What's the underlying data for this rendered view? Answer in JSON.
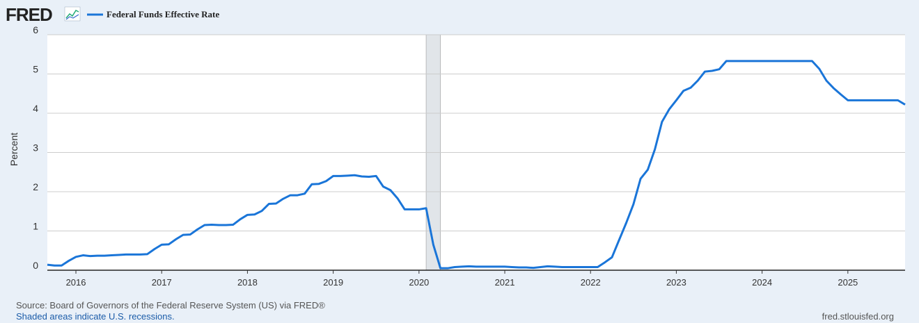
{
  "chart_data": {
    "type": "line",
    "logo": "FRED",
    "y_label": "Percent",
    "source": "Source: Board of Governors of the Federal Reserve System (US) via FRED®",
    "recession_note": "Shaded areas indicate U.S. recessions.",
    "site": "fred.stlouisfed.org",
    "x": [
      2015.667,
      2015.75,
      2015.833,
      2015.917,
      2016,
      2016.083,
      2016.167,
      2016.25,
      2016.333,
      2016.417,
      2016.5,
      2016.583,
      2016.667,
      2016.75,
      2016.833,
      2016.917,
      2017,
      2017.083,
      2017.167,
      2017.25,
      2017.333,
      2017.417,
      2017.5,
      2017.583,
      2017.667,
      2017.75,
      2017.833,
      2017.917,
      2018,
      2018.083,
      2018.167,
      2018.25,
      2018.333,
      2018.417,
      2018.5,
      2018.583,
      2018.667,
      2018.75,
      2018.833,
      2018.917,
      2019,
      2019.083,
      2019.167,
      2019.25,
      2019.333,
      2019.417,
      2019.5,
      2019.583,
      2019.667,
      2019.75,
      2019.833,
      2019.917,
      2020,
      2020.083,
      2020.167,
      2020.25,
      2020.333,
      2020.417,
      2020.5,
      2020.583,
      2020.667,
      2020.75,
      2020.833,
      2020.917,
      2021,
      2021.083,
      2021.167,
      2021.25,
      2021.333,
      2021.417,
      2021.5,
      2021.583,
      2021.667,
      2021.75,
      2021.833,
      2021.917,
      2022,
      2022.083,
      2022.167,
      2022.25,
      2022.333,
      2022.417,
      2022.5,
      2022.583,
      2022.667,
      2022.75,
      2022.833,
      2022.917,
      2023,
      2023.083,
      2023.167,
      2023.25,
      2023.333,
      2023.417,
      2023.5,
      2023.583,
      2023.667,
      2023.75,
      2023.833,
      2023.917,
      2024,
      2024.083,
      2024.167,
      2024.25,
      2024.333,
      2024.417,
      2024.5,
      2024.583,
      2024.667,
      2024.75,
      2024.833,
      2024.917,
      2025,
      2025.083,
      2025.167,
      2025.25,
      2025.333,
      2025.417,
      2025.5,
      2025.583,
      2025.667
    ],
    "series": [
      {
        "name": "Federal Funds Effective Rate",
        "color": "#1a75d8",
        "values": [
          0.14,
          0.12,
          0.12,
          0.24,
          0.34,
          0.38,
          0.36,
          0.37,
          0.37,
          0.38,
          0.39,
          0.4,
          0.4,
          0.4,
          0.41,
          0.54,
          0.65,
          0.66,
          0.79,
          0.9,
          0.91,
          1.04,
          1.15,
          1.16,
          1.15,
          1.15,
          1.16,
          1.3,
          1.41,
          1.42,
          1.51,
          1.69,
          1.7,
          1.82,
          1.91,
          1.91,
          1.95,
          2.19,
          2.2,
          2.27,
          2.4,
          2.4,
          2.41,
          2.42,
          2.39,
          2.38,
          2.4,
          2.13,
          2.04,
          1.83,
          1.55,
          1.55,
          1.55,
          1.58,
          0.65,
          0.05,
          0.05,
          0.08,
          0.09,
          0.1,
          0.09,
          0.09,
          0.09,
          0.09,
          0.09,
          0.08,
          0.07,
          0.07,
          0.06,
          0.08,
          0.1,
          0.09,
          0.08,
          0.08,
          0.08,
          0.08,
          0.08,
          0.08,
          0.2,
          0.33,
          0.77,
          1.21,
          1.68,
          2.33,
          2.56,
          3.08,
          3.78,
          4.1,
          4.33,
          4.57,
          4.65,
          4.83,
          5.06,
          5.08,
          5.12,
          5.33,
          5.33,
          5.33,
          5.33,
          5.33,
          5.33,
          5.33,
          5.33,
          5.33,
          5.33,
          5.33,
          5.33,
          5.33,
          5.13,
          4.83,
          4.64,
          4.48,
          4.33,
          4.33,
          4.33,
          4.33,
          4.33,
          4.33,
          4.33,
          4.33,
          4.22
        ]
      }
    ],
    "recessions": [
      [
        2020.083,
        2020.25
      ]
    ],
    "xlim": [
      2015.667,
      2025.667
    ],
    "xticks": [
      2016,
      2017,
      2018,
      2019,
      2020,
      2021,
      2022,
      2023,
      2024,
      2025
    ],
    "ylim": [
      0,
      6
    ],
    "yticks": [
      0,
      1,
      2,
      3,
      4,
      5,
      6
    ],
    "grid": true
  }
}
